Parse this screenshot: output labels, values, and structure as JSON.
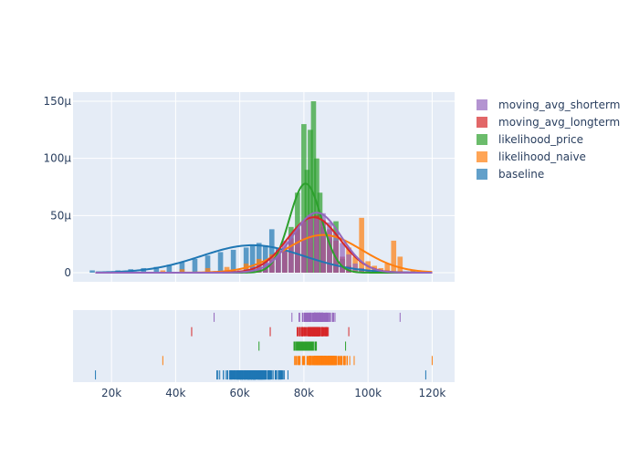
{
  "chart_data": {
    "type": "histogram",
    "title": "",
    "xlabel": "",
    "ylabel": "",
    "xlim": [
      8000,
      127000
    ],
    "ylim": [
      -8e-06,
      0.000158
    ],
    "y_ticks": [
      0,
      5e-05,
      0.0001,
      0.00015
    ],
    "y_tick_labels": [
      "0",
      "50μ",
      "100μ",
      "150μ"
    ],
    "x_ticks": [
      20000,
      40000,
      60000,
      80000,
      100000,
      120000
    ],
    "x_tick_labels": [
      "20k",
      "40k",
      "60k",
      "80k",
      "100k",
      "120k"
    ],
    "grid": true,
    "legend_position": "top-right",
    "panels": [
      "histogram with density curves",
      "rug plot"
    ],
    "series": [
      {
        "name": "moving_avg_shorterm",
        "color": "#9467bd",
        "curve": {
          "mean": 84000,
          "sd": 7600,
          "peak": 5.25e-05
        },
        "rug_range": [
          52000,
          110000
        ],
        "bins": [
          [
            60000,
            2000
          ],
          [
            62000,
            3000
          ],
          [
            64000,
            5000
          ],
          [
            66000,
            7000
          ],
          [
            68000,
            10000
          ],
          [
            70000,
            14000
          ],
          [
            72000,
            20000
          ],
          [
            74000,
            28000
          ],
          [
            76000,
            34000
          ],
          [
            78000,
            39000
          ],
          [
            80000,
            45000
          ],
          [
            82000,
            50000
          ],
          [
            84000,
            48000
          ],
          [
            86000,
            52000
          ],
          [
            88000,
            44000
          ],
          [
            90000,
            36000
          ],
          [
            92000,
            26000
          ],
          [
            94000,
            16000
          ],
          [
            96000,
            8000
          ],
          [
            98000,
            4000
          ],
          [
            100000,
            2000
          ]
        ]
      },
      {
        "name": "moving_avg_longterm",
        "color": "#d62728",
        "curve": {
          "mean": 83000,
          "sd": 8200,
          "peak": 4.85e-05
        },
        "rug_range": [
          45000,
          94000
        ],
        "bins": [
          [
            64000,
            2000
          ],
          [
            66000,
            4000
          ],
          [
            68000,
            7000
          ],
          [
            70000,
            11000
          ],
          [
            72000,
            16000
          ],
          [
            74000,
            22000
          ],
          [
            76000,
            30000
          ],
          [
            78000,
            38000
          ],
          [
            80000,
            45000
          ],
          [
            82000,
            48000
          ],
          [
            84000,
            50000
          ],
          [
            86000,
            46000
          ],
          [
            88000,
            38000
          ],
          [
            90000,
            28000
          ],
          [
            92000,
            14000
          ],
          [
            94000,
            6000
          ]
        ]
      },
      {
        "name": "likelihood_price",
        "color": "#2ca02c",
        "curve": {
          "mean": 80500,
          "sd": 5000,
          "peak": 7.8e-05
        },
        "rug_range": [
          66000,
          93000
        ],
        "bins": [
          [
            68000,
            3000
          ],
          [
            70000,
            6000
          ],
          [
            72000,
            11000
          ],
          [
            74000,
            20000
          ],
          [
            76000,
            40000
          ],
          [
            78000,
            70000
          ],
          [
            80000,
            130000
          ],
          [
            81000,
            90000
          ],
          [
            82000,
            125000
          ],
          [
            83000,
            150000
          ],
          [
            84000,
            100000
          ],
          [
            85000,
            70000
          ],
          [
            86000,
            40000
          ],
          [
            88000,
            30000
          ],
          [
            90000,
            45000
          ],
          [
            92000,
            12000
          ]
        ]
      },
      {
        "name": "likelihood_naive",
        "color": "#ff7f0e",
        "curve": {
          "mean": 86000,
          "sd": 12000,
          "peak": 3.3e-05
        },
        "rug_range": [
          36000,
          120000
        ],
        "bins": [
          [
            36000,
            2000
          ],
          [
            42000,
            3000
          ],
          [
            50000,
            4000
          ],
          [
            56000,
            5000
          ],
          [
            62000,
            8000
          ],
          [
            66000,
            12000
          ],
          [
            70000,
            16000
          ],
          [
            74000,
            18000
          ],
          [
            78000,
            22000
          ],
          [
            82000,
            26000
          ],
          [
            86000,
            30000
          ],
          [
            90000,
            28000
          ],
          [
            94000,
            22000
          ],
          [
            96000,
            14000
          ],
          [
            98000,
            48000
          ],
          [
            100000,
            10000
          ],
          [
            102000,
            6000
          ],
          [
            104000,
            4000
          ],
          [
            106000,
            8000
          ],
          [
            108000,
            28000
          ],
          [
            110000,
            14000
          ],
          [
            114000,
            2000
          ],
          [
            118000,
            1000
          ]
        ]
      },
      {
        "name": "baseline",
        "color": "#1f77b4",
        "curve": {
          "mean": 64000,
          "sd": 16000,
          "peak": 2.4e-05
        },
        "rug_range": [
          15000,
          118000
        ],
        "bins": [
          [
            14000,
            2000
          ],
          [
            18000,
            1000
          ],
          [
            22000,
            2000
          ],
          [
            26000,
            3000
          ],
          [
            30000,
            4000
          ],
          [
            34000,
            5000
          ],
          [
            38000,
            7000
          ],
          [
            42000,
            9000
          ],
          [
            46000,
            12000
          ],
          [
            50000,
            15000
          ],
          [
            54000,
            18000
          ],
          [
            58000,
            20000
          ],
          [
            62000,
            22000
          ],
          [
            64000,
            24000
          ],
          [
            66000,
            26000
          ],
          [
            68000,
            24000
          ],
          [
            70000,
            38000
          ],
          [
            72000,
            22000
          ],
          [
            74000,
            18000
          ],
          [
            78000,
            14000
          ],
          [
            82000,
            10000
          ],
          [
            86000,
            8000
          ],
          [
            90000,
            6000
          ],
          [
            94000,
            5000
          ],
          [
            98000,
            4000
          ],
          [
            102000,
            3000
          ],
          [
            106000,
            2000
          ],
          [
            112000,
            1000
          ],
          [
            118000,
            1000
          ]
        ]
      }
    ],
    "rug_tick_counts": [
      120,
      120,
      130,
      220,
      260
    ]
  }
}
